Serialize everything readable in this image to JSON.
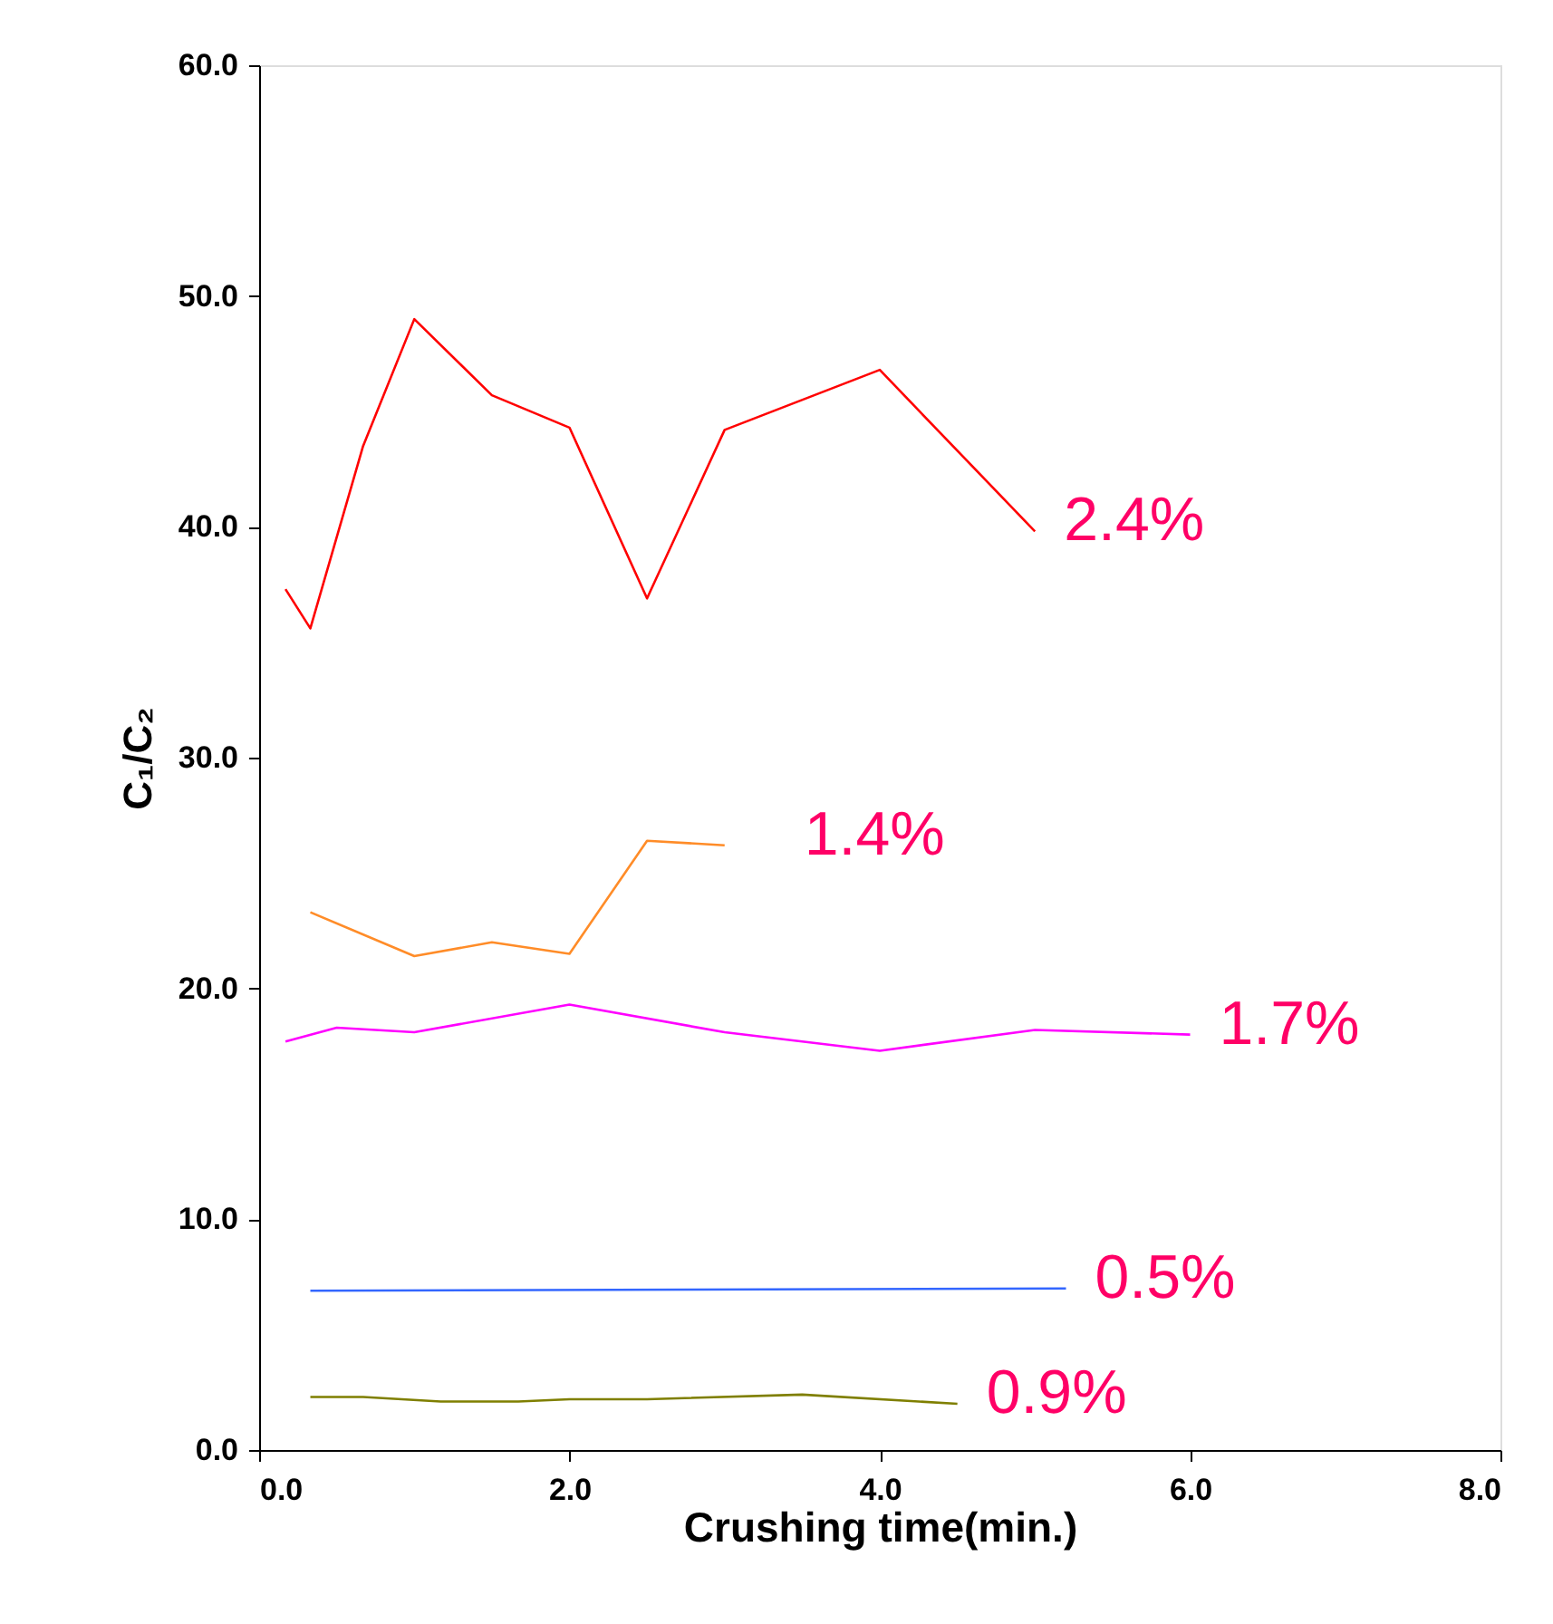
{
  "chart_data": {
    "type": "line",
    "xlabel": "Crushing time(min.)",
    "ylabel": "C₁/C₂",
    "xlim": [
      0,
      8
    ],
    "ylim": [
      0,
      60
    ],
    "xticks": [
      {
        "value": 0,
        "label": "0.0"
      },
      {
        "value": 2,
        "label": "2.0"
      },
      {
        "value": 4,
        "label": "4.0"
      },
      {
        "value": 6,
        "label": "6.0"
      },
      {
        "value": 8,
        "label": "8.0"
      }
    ],
    "yticks": [
      {
        "value": 0,
        "label": "0.0"
      },
      {
        "value": 10,
        "label": "10.0"
      },
      {
        "value": 20,
        "label": "20.0"
      },
      {
        "value": 30,
        "label": "30.0"
      },
      {
        "value": 40,
        "label": "40.0"
      },
      {
        "value": 50,
        "label": "50.0"
      },
      {
        "value": 60,
        "label": "60.0"
      }
    ],
    "grid": false,
    "marker": "none",
    "line_style": "solid",
    "series": [
      {
        "name": "2.4%",
        "color": "#ff0000",
        "x": [
          0.17,
          0.33,
          0.67,
          1,
          1.5,
          2,
          2.5,
          3,
          4,
          5
        ],
        "values": [
          37.3,
          35.6,
          43.5,
          49.0,
          45.7,
          44.3,
          36.9,
          44.2,
          46.8,
          39.8
        ]
      },
      {
        "name": "1.4%",
        "color": "#ff8c28",
        "x": [
          0.33,
          1,
          1.5,
          2,
          2.5,
          3
        ],
        "values": [
          23.3,
          21.4,
          22.0,
          21.5,
          26.4,
          26.2
        ]
      },
      {
        "name": "1.7%",
        "color": "#ff00ff",
        "x": [
          0.17,
          0.5,
          1,
          2,
          3,
          4,
          5,
          6
        ],
        "values": [
          17.7,
          18.3,
          18.1,
          19.3,
          18.1,
          17.3,
          18.2,
          18.0
        ]
      },
      {
        "name": "0.5%",
        "color": "#3366ff",
        "x": [
          0.33,
          5.2
        ],
        "values": [
          6.9,
          7.0
        ]
      },
      {
        "name": "0.9%",
        "color": "#7f7f00",
        "x": [
          0.33,
          0.67,
          1.17,
          1.67,
          2,
          2.5,
          3.5,
          4.5
        ],
        "values": [
          2.3,
          2.3,
          2.1,
          2.1,
          2.2,
          2.2,
          2.4,
          2.0
        ]
      }
    ]
  }
}
